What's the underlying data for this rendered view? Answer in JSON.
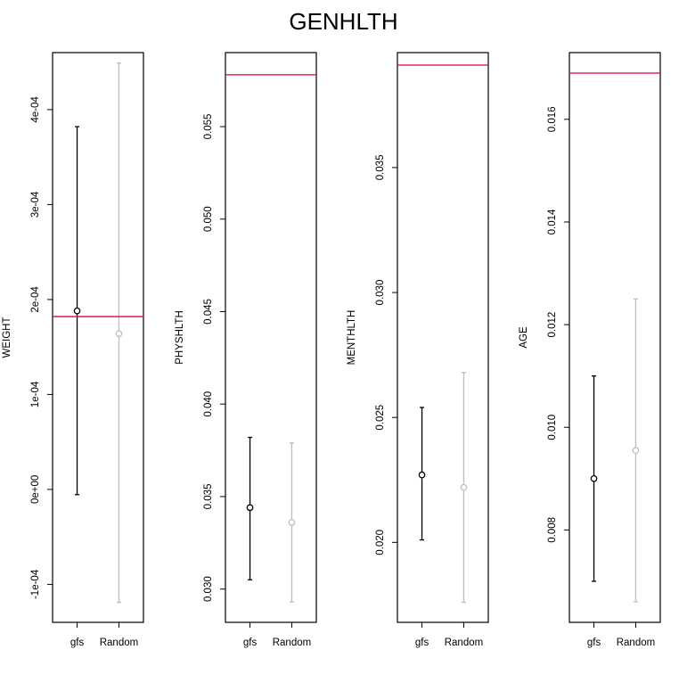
{
  "chart_data": {
    "title": "GENHLTH",
    "type": "scatter",
    "panels": [
      {
        "ylabel": "WEIGHT",
        "categories": [
          "gfs",
          "Random"
        ],
        "ylim": [
          -0.00014,
          0.00046
        ],
        "yticks": [
          -0.0001,
          0,
          0.0001,
          0.0002,
          0.0003,
          0.0004
        ],
        "ytick_labels": [
          "-1e-04",
          "0e+00",
          "1e-04",
          "2e-04",
          "3e-04",
          "4e-04"
        ],
        "points": [
          {
            "category": "gfs",
            "value": 0.000188,
            "lower": -5.5e-06,
            "upper": 0.000382,
            "color": "#000000"
          },
          {
            "category": "Random",
            "value": 0.000164,
            "lower": -0.000119,
            "upper": 0.000449,
            "color": "#bebebe"
          }
        ],
        "reference_line": {
          "value": 0.000182,
          "color": "#df0046"
        }
      },
      {
        "ylabel": "PHYSHLTH",
        "categories": [
          "gfs",
          "Random"
        ],
        "ylim": [
          0.0282,
          0.059
        ],
        "yticks": [
          0.03,
          0.035,
          0.04,
          0.045,
          0.05,
          0.055
        ],
        "ytick_labels": [
          "0.030",
          "0.035",
          "0.040",
          "0.045",
          "0.050",
          "0.055"
        ],
        "points": [
          {
            "category": "gfs",
            "value": 0.0344,
            "lower": 0.0305,
            "upper": 0.0382,
            "color": "#000000"
          },
          {
            "category": "Random",
            "value": 0.0336,
            "lower": 0.0293,
            "upper": 0.0379,
            "color": "#bebebe"
          }
        ],
        "reference_line": {
          "value": 0.0578,
          "color": "#df0046"
        }
      },
      {
        "ylabel": "MENTHLTH",
        "categories": [
          "gfs",
          "Random"
        ],
        "ylim": [
          0.0168,
          0.0396
        ],
        "yticks": [
          0.02,
          0.025,
          0.03,
          0.035
        ],
        "ytick_labels": [
          "0.020",
          "0.025",
          "0.030",
          "0.035"
        ],
        "points": [
          {
            "category": "gfs",
            "value": 0.0227,
            "lower": 0.0201,
            "upper": 0.0254,
            "color": "#000000"
          },
          {
            "category": "Random",
            "value": 0.0222,
            "lower": 0.0176,
            "upper": 0.0268,
            "color": "#bebebe"
          }
        ],
        "reference_line": {
          "value": 0.0391,
          "color": "#df0046"
        }
      },
      {
        "ylabel": "AGE",
        "categories": [
          "gfs",
          "Random"
        ],
        "ylim": [
          0.0062,
          0.0173
        ],
        "yticks": [
          0.008,
          0.01,
          0.012,
          0.014,
          0.016
        ],
        "ytick_labels": [
          "0.008",
          "0.010",
          "0.012",
          "0.014",
          "0.016"
        ],
        "points": [
          {
            "category": "gfs",
            "value": 0.009,
            "lower": 0.007,
            "upper": 0.011,
            "color": "#000000"
          },
          {
            "category": "Random",
            "value": 0.00955,
            "lower": 0.0066,
            "upper": 0.0125,
            "color": "#bebebe"
          }
        ],
        "reference_line": {
          "value": 0.0169,
          "color": "#df0046"
        }
      }
    ],
    "grid": false,
    "legend": "none"
  }
}
